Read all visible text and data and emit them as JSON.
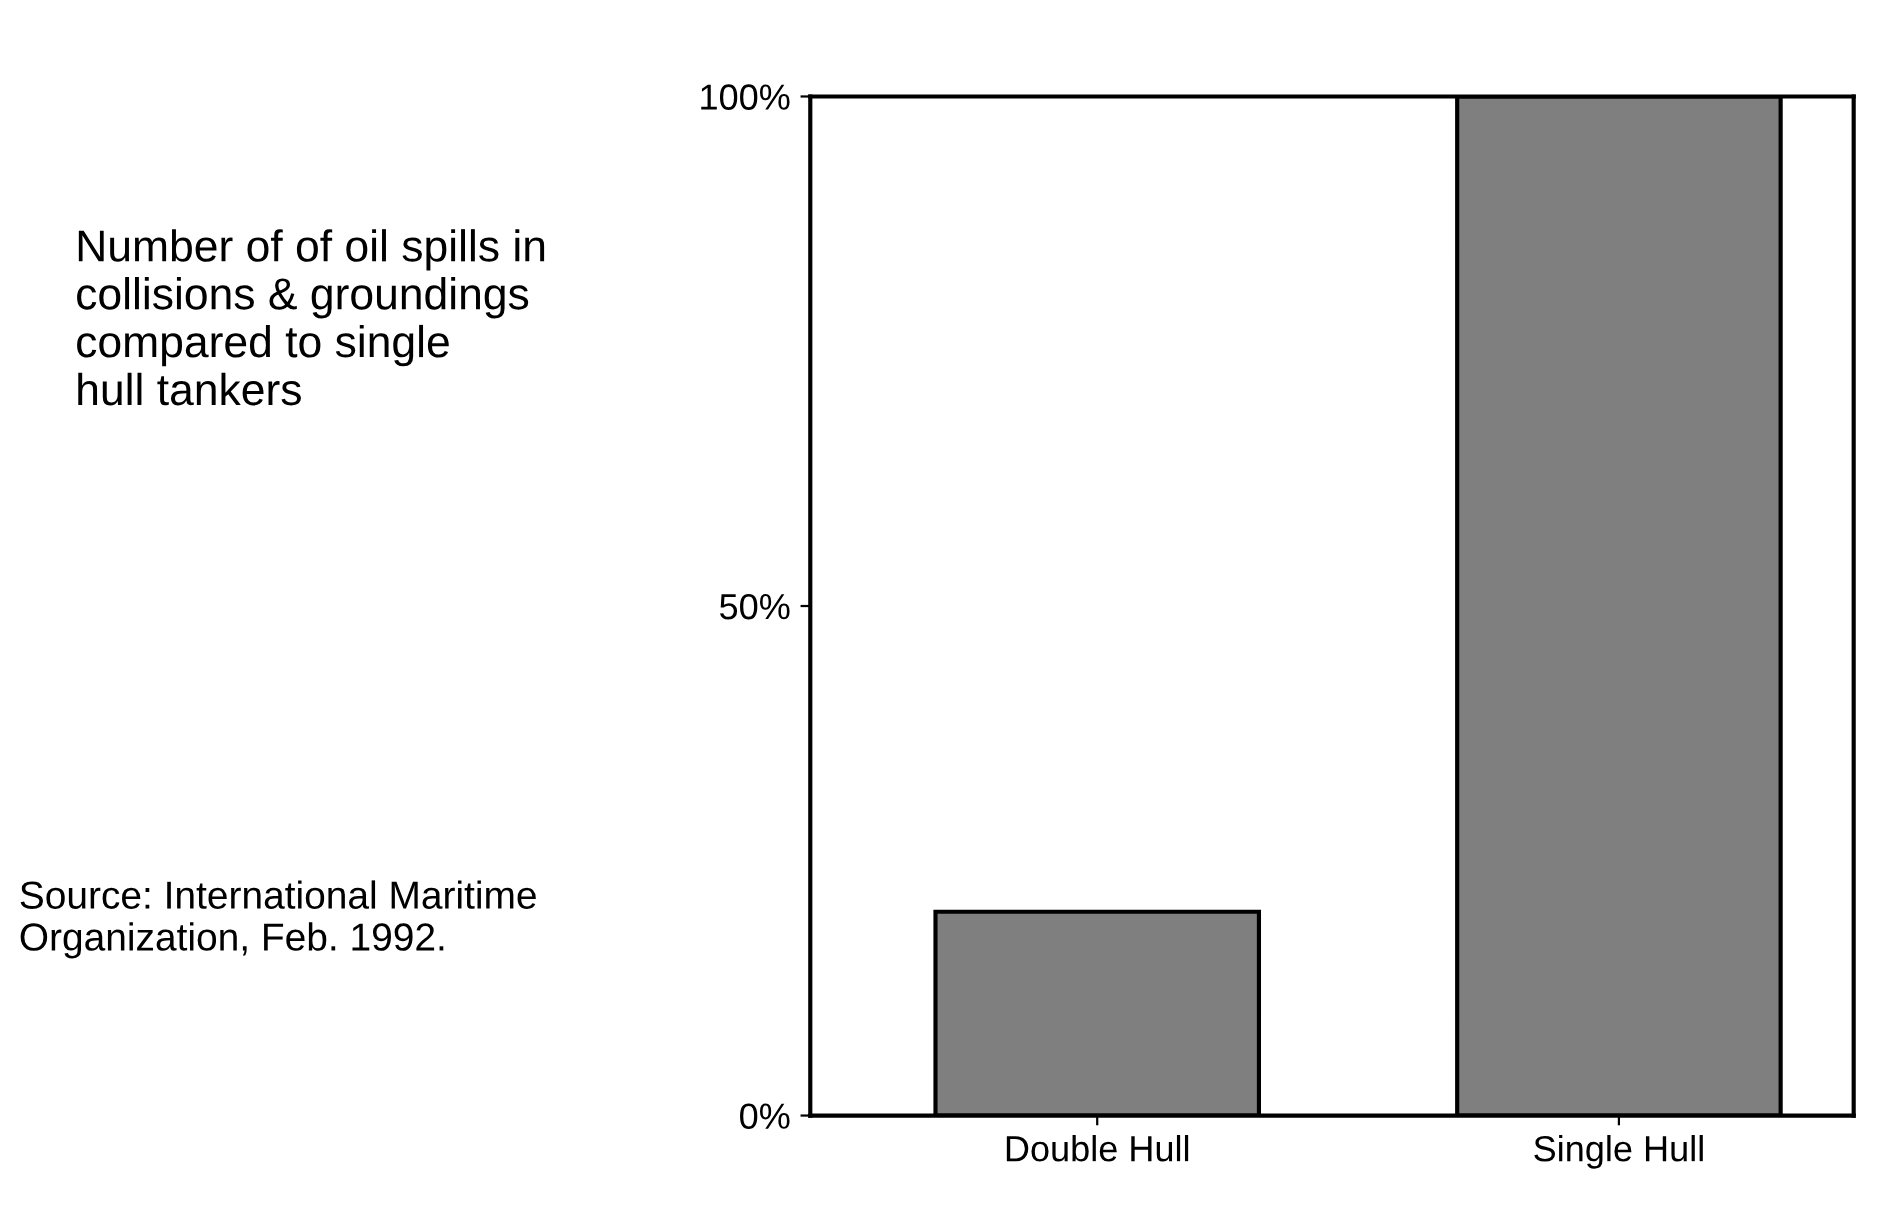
{
  "chart_data": {
    "type": "bar",
    "title": "Number of of oil spills in\ncollisions & groundings\ncompared to single\nhull tankers",
    "categories": [
      "Double Hull",
      "Single Hull"
    ],
    "values": [
      20,
      100
    ],
    "color": "#7f7f7f",
    "ylim": [
      0,
      100
    ],
    "yticks": [
      {
        "value": 0,
        "label": "0%"
      },
      {
        "value": 50,
        "label": "50%"
      },
      {
        "value": 100,
        "label": "100%"
      }
    ],
    "annotations": [
      "Source: International Maritime\nOrganization, Feb. 1992."
    ],
    "grid": false
  }
}
